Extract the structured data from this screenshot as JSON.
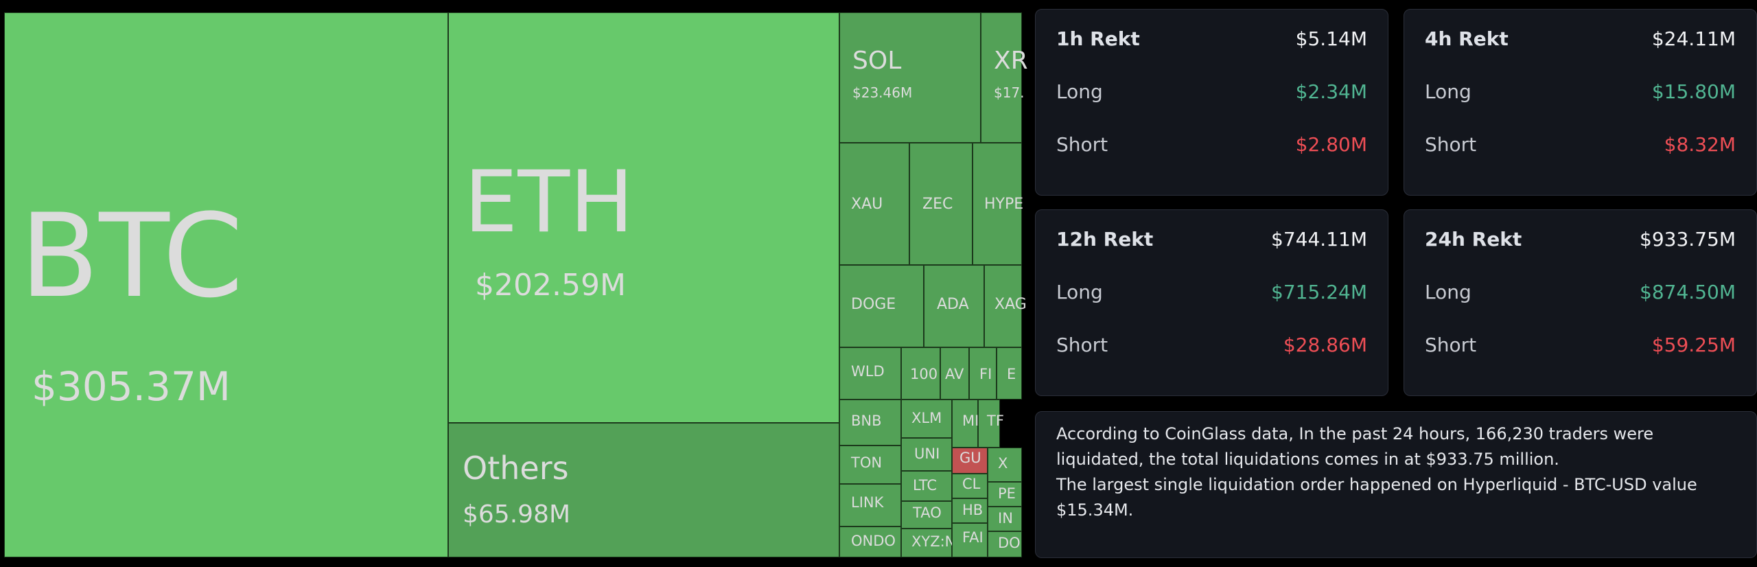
{
  "colors": {
    "major_green": "#67c96b",
    "minor_green": "#53a157",
    "loss_red": "#c25252",
    "card_bg": "#13161d",
    "long_green": "#51b592",
    "short_red": "#ee4e55"
  },
  "treemap": {
    "tiles": [
      {
        "symbol": "BTC",
        "value": "$305.37M"
      },
      {
        "symbol": "ETH",
        "value": "$202.59M"
      },
      {
        "symbol": "Others",
        "value": "$65.98M"
      },
      {
        "symbol": "SOL",
        "value": "$23.46M"
      },
      {
        "symbol": "XR",
        "value": "$17."
      },
      {
        "symbol": "XAU",
        "value": ""
      },
      {
        "symbol": "ZEC",
        "value": ""
      },
      {
        "symbol": "HYPE",
        "value": ""
      },
      {
        "symbol": "DOGE",
        "value": ""
      },
      {
        "symbol": "ADA",
        "value": ""
      },
      {
        "symbol": "XAG",
        "value": ""
      },
      {
        "symbol": "WLD",
        "value": ""
      },
      {
        "symbol": "100",
        "value": ""
      },
      {
        "symbol": "AV",
        "value": ""
      },
      {
        "symbol": "FI",
        "value": ""
      },
      {
        "symbol": "E",
        "value": ""
      },
      {
        "symbol": "BNB",
        "value": ""
      },
      {
        "symbol": "XLM",
        "value": ""
      },
      {
        "symbol": "MI",
        "value": ""
      },
      {
        "symbol": "TF",
        "value": ""
      },
      {
        "symbol": "TON",
        "value": ""
      },
      {
        "symbol": "UNI",
        "value": ""
      },
      {
        "symbol": "GU",
        "value": ""
      },
      {
        "symbol": "X",
        "value": ""
      },
      {
        "symbol": "LINK",
        "value": ""
      },
      {
        "symbol": "LTC",
        "value": ""
      },
      {
        "symbol": "CL",
        "value": ""
      },
      {
        "symbol": "PE",
        "value": ""
      },
      {
        "symbol": "TAO",
        "value": ""
      },
      {
        "symbol": "HB",
        "value": ""
      },
      {
        "symbol": "IN",
        "value": ""
      },
      {
        "symbol": "ONDO",
        "value": ""
      },
      {
        "symbol": "XYZ:N",
        "value": ""
      },
      {
        "symbol": "FAI",
        "value": ""
      },
      {
        "symbol": "DO",
        "value": ""
      }
    ]
  },
  "stats": {
    "cards": [
      {
        "title": "1h Rekt",
        "total": "$5.14M",
        "long_label": "Long",
        "long": "$2.34M",
        "short_label": "Short",
        "short": "$2.80M"
      },
      {
        "title": "4h Rekt",
        "total": "$24.11M",
        "long_label": "Long",
        "long": "$15.80M",
        "short_label": "Short",
        "short": "$8.32M"
      },
      {
        "title": "12h Rekt",
        "total": "$744.11M",
        "long_label": "Long",
        "long": "$715.24M",
        "short_label": "Short",
        "short": "$28.86M"
      },
      {
        "title": "24h Rekt",
        "total": "$933.75M",
        "long_label": "Long",
        "long": "$874.50M",
        "short_label": "Short",
        "short": "$59.25M"
      }
    ],
    "summary_line1": "According to CoinGlass data, In the past 24 hours, 166,230 traders were liquidated, the total liquidations comes in at $933.75 million.",
    "summary_line2": "The largest single liquidation order happened on Hyperliquid - BTC-USD value $15.34M."
  }
}
